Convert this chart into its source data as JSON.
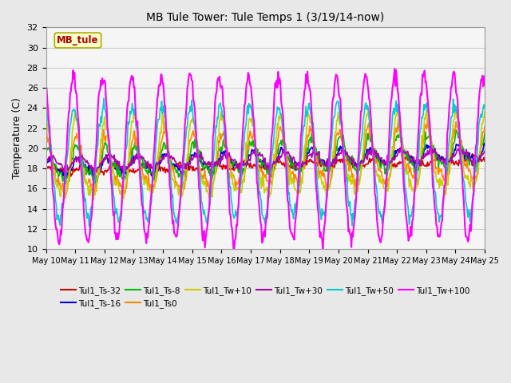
{
  "title": "MB Tule Tower: Tule Temps 1 (3/19/14-now)",
  "ylabel": "Temperature (C)",
  "ylim": [
    10,
    32
  ],
  "yticks": [
    10,
    12,
    14,
    16,
    18,
    20,
    22,
    24,
    26,
    28,
    30,
    32
  ],
  "xtick_labels": [
    "May 10",
    "May 11",
    "May 12",
    "May 13",
    "May 14",
    "May 15",
    "May 16",
    "May 17",
    "May 18",
    "May 19",
    "May 20",
    "May 21",
    "May 22",
    "May 23",
    "May 24",
    "May 25"
  ],
  "legend_box_label": "MB_tule",
  "series_order": [
    "Tul1_Ts-32",
    "Tul1_Ts-16",
    "Tul1_Ts-8",
    "Tul1_Ts0",
    "Tul1_Tw+10",
    "Tul1_Tw+30",
    "Tul1_Tw+50",
    "Tul1_Tw+100"
  ],
  "series": {
    "Tul1_Ts-32": {
      "color": "#cc0000",
      "lw": 1.2,
      "base": 17.8,
      "trend": 0.07,
      "amp": 0.3,
      "freq": 0.9,
      "phase": 0.5,
      "noise": 0.15
    },
    "Tul1_Ts-16": {
      "color": "#0000cc",
      "lw": 1.2,
      "base": 18.0,
      "trend": 0.1,
      "amp": 0.8,
      "freq": 1.0,
      "phase": 0.8,
      "noise": 0.2
    },
    "Tul1_Ts-8": {
      "color": "#00bb00",
      "lw": 1.2,
      "base": 18.2,
      "trend": 0.1,
      "amp": 1.5,
      "freq": 1.0,
      "phase": 1.0,
      "noise": 0.3
    },
    "Tul1_Ts0": {
      "color": "#ff8800",
      "lw": 1.2,
      "base": 18.0,
      "trend": 0.08,
      "amp": 2.5,
      "freq": 1.0,
      "phase": 1.2,
      "noise": 0.35
    },
    "Tul1_Tw+10": {
      "color": "#cccc00",
      "lw": 1.2,
      "base": 18.2,
      "trend": 0.06,
      "amp": 3.5,
      "freq": 1.0,
      "phase": 1.4,
      "noise": 0.4
    },
    "Tul1_Tw+30": {
      "color": "#aa00aa",
      "lw": 1.2,
      "base": 18.5,
      "trend": 0.04,
      "amp": 0.4,
      "freq": 1.0,
      "phase": 0.2,
      "noise": 0.2
    },
    "Tul1_Tw+50": {
      "color": "#00cccc",
      "lw": 1.2,
      "base": 18.5,
      "trend": 0.03,
      "amp": 5.0,
      "freq": 1.0,
      "phase": 1.6,
      "noise": 0.4
    },
    "Tul1_Tw+100": {
      "color": "#ff00ff",
      "lw": 1.5,
      "base": 19.0,
      "trend": 0.01,
      "amp": 8.5,
      "freq": 1.0,
      "phase": 2.0,
      "noise": 0.3
    }
  },
  "background_color": "#e8e8e8",
  "plot_bg": "#f5f5f5",
  "grid_color": "#cccccc"
}
